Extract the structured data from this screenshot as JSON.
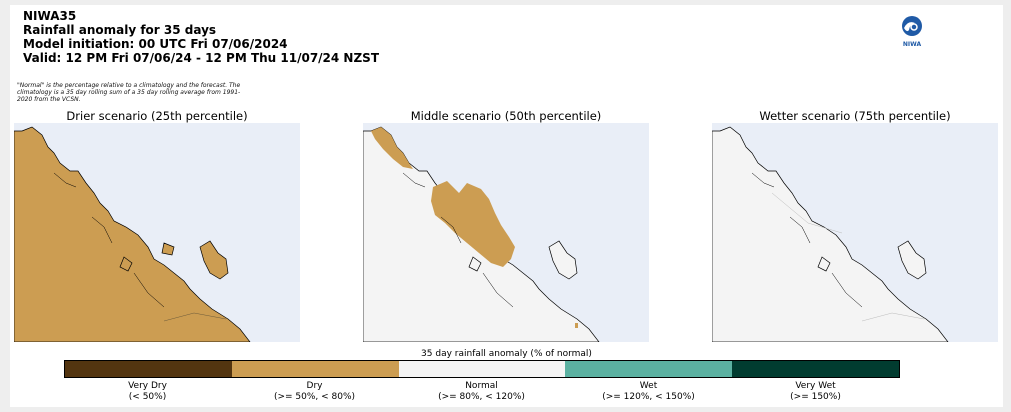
{
  "header": {
    "line1": "NIWA35",
    "line2": "Rainfall anomaly for 35 days",
    "line3": "Model initiation: 00 UTC Fri 07/06/2024",
    "line4": "Valid: 12 PM Fri 07/06/24 - 12 PM Thu 11/07/24 NZST"
  },
  "note": "\"Normal\" is the percentage relative to a climatology and the forecast. The climatology is a 35 day rolling sum of a 35 day rolling average from 1991-2020 from the VCSN.",
  "logo": {
    "icon": "niwa-logo",
    "text": "NIWA"
  },
  "panels": [
    {
      "title": "Drier scenario (25th percentile)",
      "land_category": "Dry",
      "land_color": "#cc9d52"
    },
    {
      "title": "Middle scenario (50th percentile)",
      "land_category": "Normal with Dry patch",
      "land_color": "#f4f4f4"
    },
    {
      "title": "Wetter scenario (75th percentile)",
      "land_category": "Normal",
      "land_color": "#f4f4f4"
    }
  ],
  "colorbar": {
    "title": "35 day rainfall anomaly (% of normal)",
    "categories": [
      {
        "name": "Very Dry",
        "range": "(< 50%)",
        "color": "#533510"
      },
      {
        "name": "Dry",
        "range": "(>= 50%, < 80%)",
        "color": "#cc9d52"
      },
      {
        "name": "Normal",
        "range": "(>= 80%, < 120%)",
        "color": "#f4f4f4"
      },
      {
        "name": "Wet",
        "range": "(>= 120%, < 150%)",
        "color": "#5bb1a1"
      },
      {
        "name": "Very Wet",
        "range": "(>= 150%)",
        "color": "#013c30"
      }
    ]
  }
}
